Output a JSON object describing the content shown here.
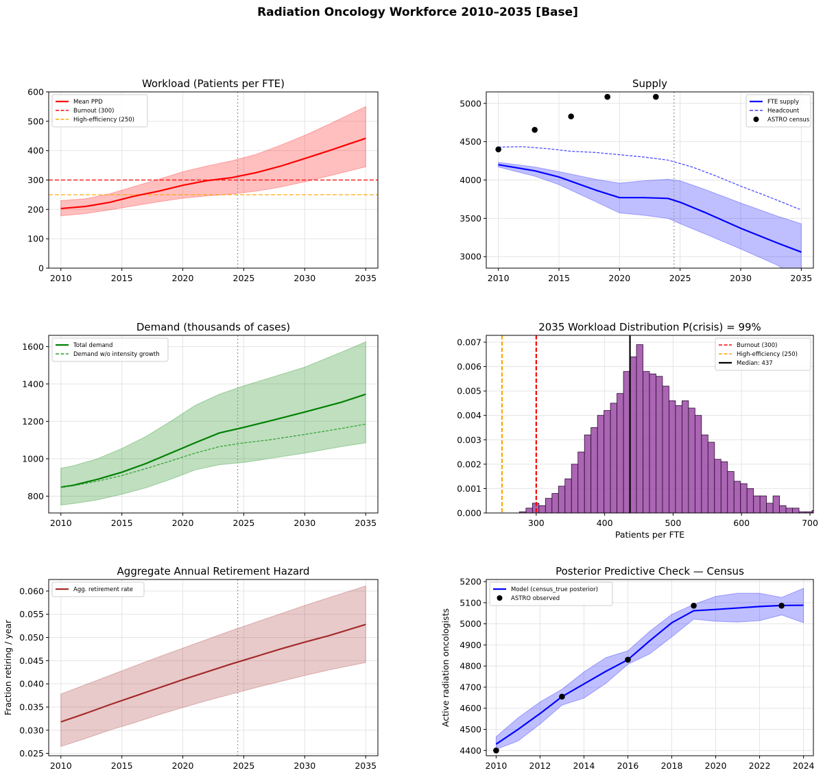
{
  "figure": {
    "suptitle": "Radiation Oncology Workforce 2010–2035  [Base]"
  },
  "chart_data": [
    {
      "type": "line",
      "title": "Workload (Patients per FTE)",
      "xlabel": "",
      "ylabel": "",
      "xlim": [
        2009,
        2036
      ],
      "ylim": [
        0,
        600
      ],
      "xticks": [
        2010,
        2015,
        2020,
        2025,
        2030,
        2035
      ],
      "yticks": [
        0,
        100,
        200,
        300,
        400,
        500,
        600
      ],
      "grid": true,
      "legend_position": "top-left",
      "vline": 2024.5,
      "series": [
        {
          "name": "Mean PPD",
          "color": "#ff0000",
          "style": "solid",
          "x": [
            2010,
            2012,
            2014,
            2016,
            2018,
            2020,
            2022,
            2024,
            2026,
            2028,
            2030,
            2032,
            2035
          ],
          "y": [
            203,
            210,
            224,
            245,
            262,
            282,
            298,
            308,
            325,
            347,
            373,
            400,
            442
          ],
          "band_low": [
            178,
            186,
            198,
            212,
            226,
            238,
            246,
            252,
            262,
            276,
            294,
            314,
            345
          ],
          "band_high": [
            230,
            236,
            253,
            278,
            302,
            328,
            348,
            365,
            387,
            418,
            452,
            490,
            550
          ]
        }
      ],
      "hlines": [
        {
          "name": "Burnout (300)",
          "y": 300,
          "color": "#ff0000",
          "style": "dashed"
        },
        {
          "name": "High-efficiency (250)",
          "y": 250,
          "color": "#ffa500",
          "style": "dashed"
        }
      ]
    },
    {
      "type": "line",
      "title": "Supply",
      "xlabel": "",
      "ylabel": "",
      "xlim": [
        2009,
        2036
      ],
      "ylim": [
        2850,
        5150
      ],
      "xticks": [
        2010,
        2015,
        2020,
        2025,
        2030,
        2035
      ],
      "yticks": [
        3000,
        3500,
        4000,
        4500,
        5000
      ],
      "grid": true,
      "legend_position": "top-right",
      "vline": 2024.5,
      "series": [
        {
          "name": "FTE supply",
          "color": "#0000ff",
          "style": "solid",
          "x": [
            2010,
            2013,
            2015,
            2018,
            2020,
            2022,
            2024,
            2025,
            2027,
            2030,
            2033,
            2035
          ],
          "y": [
            4200,
            4120,
            4040,
            3870,
            3770,
            3770,
            3760,
            3710,
            3580,
            3370,
            3180,
            3060
          ],
          "band_low": [
            4170,
            4050,
            3940,
            3720,
            3570,
            3540,
            3500,
            3430,
            3300,
            3100,
            2890,
            2700
          ],
          "band_high": [
            4230,
            4170,
            4110,
            4010,
            3960,
            3990,
            4010,
            3990,
            3880,
            3700,
            3530,
            3430
          ]
        },
        {
          "name": "Headcount",
          "color": "#4040ff",
          "style": "dashed",
          "x": [
            2010,
            2012,
            2014,
            2016,
            2018,
            2020,
            2022,
            2024,
            2026,
            2028,
            2030,
            2032,
            2035
          ],
          "y": [
            4430,
            4435,
            4410,
            4375,
            4360,
            4330,
            4300,
            4260,
            4170,
            4050,
            3920,
            3800,
            3610
          ]
        }
      ],
      "scatter": {
        "name": "ASTRO census",
        "color": "#000000",
        "x": [
          2010,
          2013,
          2016,
          2019,
          2023
        ],
        "y": [
          4400,
          4655,
          4830,
          5086,
          5086
        ]
      }
    },
    {
      "type": "line",
      "title": "Demand (thousands of cases)",
      "xlabel": "",
      "ylabel": "",
      "xlim": [
        2009,
        2036
      ],
      "ylim": [
        710,
        1660
      ],
      "xticks": [
        2010,
        2015,
        2020,
        2025,
        2030,
        2035
      ],
      "yticks": [
        800,
        1000,
        1200,
        1400,
        1600
      ],
      "grid": true,
      "legend_position": "top-left",
      "vline": 2024.5,
      "series": [
        {
          "name": "Total demand",
          "color": "#008000",
          "style": "solid",
          "x": [
            2010,
            2011,
            2013,
            2015,
            2017,
            2019,
            2021,
            2023,
            2025,
            2027,
            2030,
            2033,
            2035
          ],
          "y": [
            848,
            858,
            890,
            928,
            975,
            1030,
            1085,
            1138,
            1168,
            1200,
            1250,
            1302,
            1345
          ],
          "band_low": [
            752,
            760,
            780,
            810,
            845,
            890,
            940,
            968,
            980,
            1000,
            1030,
            1065,
            1085
          ],
          "band_high": [
            950,
            962,
            1000,
            1055,
            1120,
            1200,
            1285,
            1345,
            1390,
            1430,
            1490,
            1570,
            1625
          ]
        },
        {
          "name": "Demand w/o intensity growth",
          "color": "#2e9e2e",
          "style": "dashed",
          "x": [
            2010,
            2011,
            2013,
            2015,
            2017,
            2019,
            2021,
            2023,
            2025,
            2027,
            2030,
            2033,
            2035
          ],
          "y": [
            848,
            855,
            880,
            910,
            948,
            988,
            1030,
            1065,
            1085,
            1100,
            1130,
            1162,
            1185
          ]
        }
      ]
    },
    {
      "type": "histogram",
      "title": "2035 Workload Distribution  P(crisis) = 99%",
      "xlabel": "Patients per FTE",
      "ylabel": "",
      "xlim": [
        227,
        705
      ],
      "ylim": [
        0,
        0.00728
      ],
      "xticks": [
        300,
        400,
        500,
        600,
        700
      ],
      "yticks": [
        0.0,
        0.001,
        0.002,
        0.003,
        0.004,
        0.005,
        0.006,
        0.007
      ],
      "grid": true,
      "legend_position": "top-right",
      "bar_color": "#9b4aa6",
      "bins_start": 275.5,
      "bin_width": 9.5,
      "values": [
        5e-05,
        0.0002,
        0.0004,
        0.0003,
        0.0006,
        0.0008,
        0.0011,
        0.0014,
        0.002,
        0.0025,
        0.0032,
        0.0035,
        0.004,
        0.0042,
        0.0045,
        0.0049,
        0.0058,
        0.0064,
        0.0069,
        0.0058,
        0.0057,
        0.0056,
        0.0052,
        0.0046,
        0.0044,
        0.0046,
        0.0043,
        0.004,
        0.0032,
        0.0029,
        0.0022,
        0.0021,
        0.0017,
        0.0013,
        0.0012,
        0.001,
        0.0007,
        0.0007,
        0.0004,
        0.0007,
        0.0003,
        0.0002,
        0.0002,
        5e-05,
        5e-05,
        0.0001,
        5e-05,
        5e-05
      ],
      "vlines": [
        {
          "name": "Burnout (300)",
          "x": 300,
          "color": "#ff0000",
          "style": "dashed"
        },
        {
          "name": "High-efficiency (250)",
          "x": 250,
          "color": "#ffa500",
          "style": "dashed"
        },
        {
          "name": "Median: 437",
          "x": 437,
          "color": "#000000",
          "style": "solid"
        }
      ]
    },
    {
      "type": "line",
      "title": "Aggregate Annual Retirement Hazard",
      "xlabel": "",
      "ylabel": "Fraction retiring / year",
      "xlim": [
        2009,
        2036
      ],
      "ylim": [
        0.0245,
        0.0625
      ],
      "xticks": [
        2010,
        2015,
        2020,
        2025,
        2030,
        2035
      ],
      "yticks": [
        0.025,
        0.03,
        0.035,
        0.04,
        0.045,
        0.05,
        0.055,
        0.06
      ],
      "grid": true,
      "legend_position": "top-left",
      "vline": 2024.5,
      "series": [
        {
          "name": "Agg. retirement rate",
          "color": "#a52a2a",
          "style": "solid",
          "x": [
            2010,
            2012,
            2014,
            2016,
            2018,
            2020,
            2022,
            2024,
            2026,
            2028,
            2030,
            2032,
            2035
          ],
          "y": [
            0.0318,
            0.0336,
            0.0355,
            0.0373,
            0.0391,
            0.0409,
            0.0426,
            0.0443,
            0.0459,
            0.0475,
            0.049,
            0.0504,
            0.0528
          ],
          "band_low": [
            0.0265,
            0.0282,
            0.03,
            0.0316,
            0.0333,
            0.0349,
            0.0364,
            0.0378,
            0.0392,
            0.0405,
            0.0418,
            0.043,
            0.0446
          ],
          "band_high": [
            0.0378,
            0.0398,
            0.0418,
            0.0438,
            0.0458,
            0.0477,
            0.0496,
            0.0515,
            0.0533,
            0.0551,
            0.0569,
            0.0586,
            0.0611
          ]
        }
      ]
    },
    {
      "type": "line",
      "title": "Posterior Predictive Check — Census",
      "xlabel": "",
      "ylabel": "Active radiation oncologists",
      "xlim": [
        2009.55,
        2024.45
      ],
      "ylim": [
        4375,
        5210
      ],
      "xticks": [
        2010,
        2012,
        2014,
        2016,
        2018,
        2020,
        2022,
        2024
      ],
      "yticks": [
        4400,
        4500,
        4600,
        4700,
        4800,
        4900,
        5000,
        5100,
        5200
      ],
      "grid": true,
      "legend_position": "top-left",
      "series": [
        {
          "name": "Model (census_true posterior)",
          "color": "#0000ff",
          "style": "solid",
          "x": [
            2010,
            2011,
            2012,
            2013,
            2014,
            2015,
            2016,
            2017,
            2018,
            2019,
            2020,
            2021,
            2022,
            2023,
            2024
          ],
          "y": [
            4430,
            4500,
            4575,
            4655,
            4715,
            4775,
            4830,
            4920,
            5005,
            5062,
            5068,
            5075,
            5082,
            5087,
            5088
          ],
          "band_low": [
            4405,
            4445,
            4525,
            4615,
            4648,
            4718,
            4808,
            4858,
            4938,
            5022,
            5012,
            5008,
            5015,
            5042,
            5005
          ],
          "band_high": [
            4465,
            4555,
            4630,
            4690,
            4772,
            4840,
            4872,
            4965,
            5045,
            5092,
            5130,
            5145,
            5145,
            5125,
            5168
          ]
        }
      ],
      "scatter": {
        "name": "ASTRO observed",
        "color": "#000000",
        "x": [
          2010,
          2013,
          2016,
          2019,
          2023
        ],
        "y": [
          4400,
          4655,
          4830,
          5086,
          5086
        ]
      }
    }
  ]
}
